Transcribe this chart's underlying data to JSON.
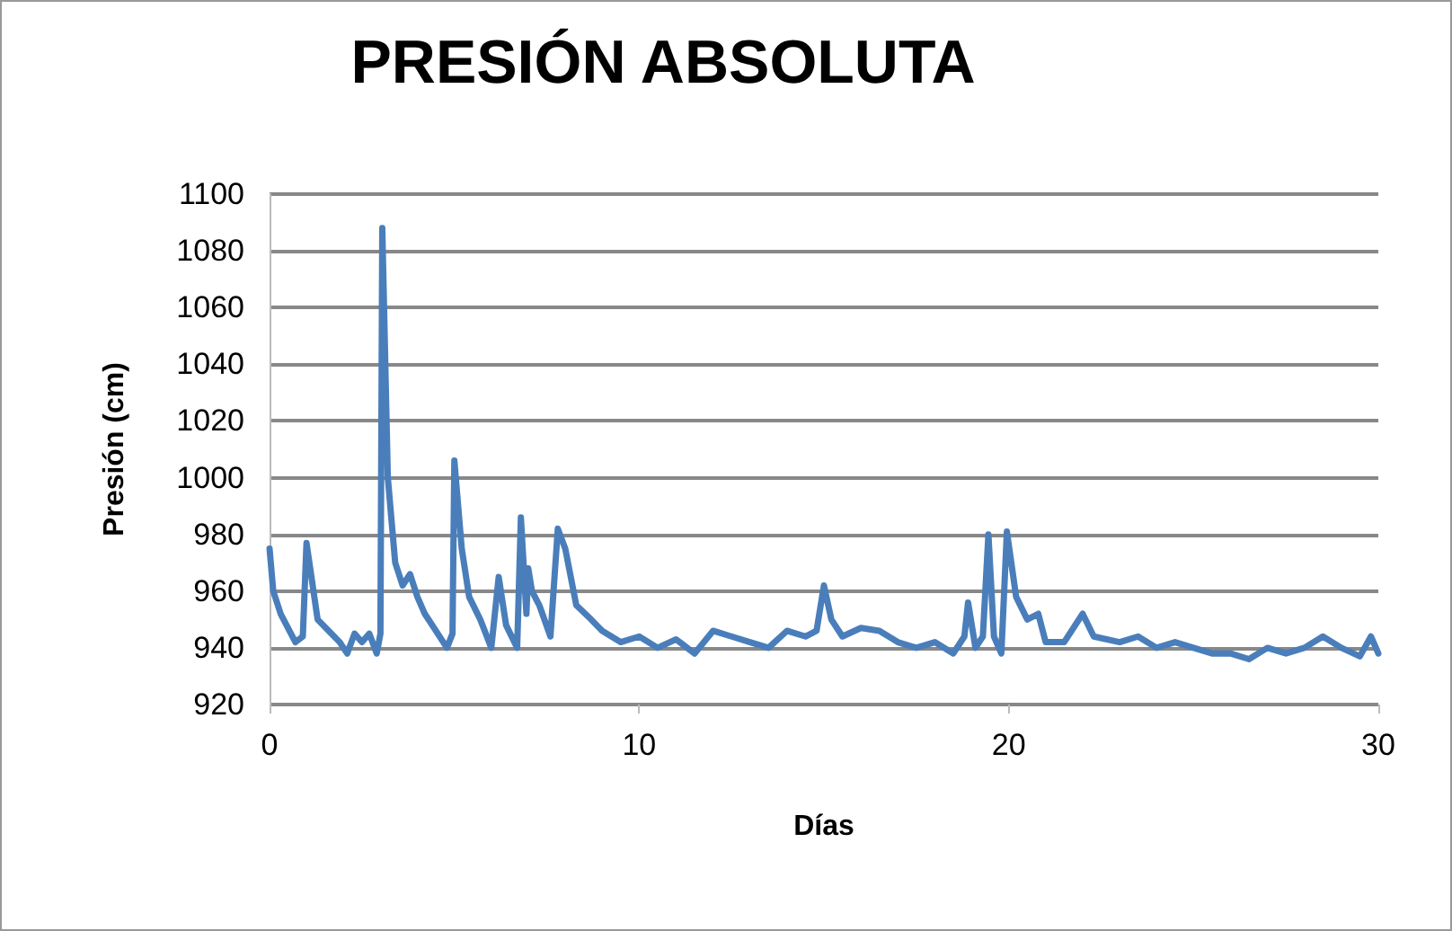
{
  "chart_data": {
    "type": "line",
    "title": "PRESIÓN ABSOLUTA",
    "xlabel": "Días",
    "ylabel": "Presión (cm)",
    "xlim": [
      0,
      30
    ],
    "xticks": [
      0,
      10,
      20,
      30
    ],
    "ylim": [
      920,
      1100
    ],
    "yticks": [
      920,
      940,
      960,
      980,
      1000,
      1020,
      1040,
      1060,
      1080,
      1100
    ],
    "grid": "y",
    "marker": "none",
    "line_style": "solid",
    "series": [
      {
        "color": "#4a7ebb",
        "x": [
          0,
          0.1,
          0.3,
          0.7,
          0.9,
          1.0,
          1.1,
          1.3,
          1.6,
          1.9,
          2.1,
          2.3,
          2.5,
          2.7,
          2.9,
          3.0,
          3.05,
          3.2,
          3.4,
          3.6,
          3.8,
          4.0,
          4.2,
          4.5,
          4.8,
          4.95,
          5.0,
          5.2,
          5.4,
          5.7,
          6.0,
          6.2,
          6.4,
          6.7,
          6.8,
          6.95,
          7.0,
          7.1,
          7.3,
          7.6,
          7.8,
          8.0,
          8.3,
          8.7,
          9.0,
          9.5,
          10,
          10.5,
          11,
          11.5,
          12,
          12.5,
          13,
          13.5,
          14,
          14.5,
          14.8,
          15,
          15.2,
          15.5,
          16,
          16.5,
          17,
          17.5,
          18,
          18.5,
          18.8,
          18.9,
          19.1,
          19.3,
          19.45,
          19.6,
          19.8,
          19.95,
          20.2,
          20.5,
          20.8,
          21,
          21.5,
          22,
          22.3,
          23,
          23.5,
          24,
          24.5,
          25,
          25.5,
          26,
          26.5,
          27,
          27.5,
          28,
          28.5,
          29,
          29.5,
          29.8,
          30
        ],
        "values": [
          975,
          960,
          952,
          942,
          944,
          977,
          968,
          950,
          946,
          942,
          938,
          945,
          942,
          945,
          938,
          945,
          1088,
          1000,
          970,
          962,
          966,
          958,
          952,
          946,
          940,
          945,
          1006,
          975,
          958,
          950,
          940,
          965,
          948,
          940,
          986,
          952,
          968,
          960,
          955,
          944,
          982,
          975,
          955,
          950,
          946,
          942,
          944,
          940,
          943,
          938,
          946,
          944,
          942,
          940,
          946,
          944,
          946,
          962,
          950,
          944,
          947,
          946,
          942,
          940,
          942,
          938,
          944,
          956,
          940,
          944,
          980,
          944,
          938,
          981,
          958,
          950,
          952,
          942,
          942,
          952,
          944,
          942,
          944,
          940,
          942,
          940,
          938,
          938,
          936,
          940,
          938,
          940,
          944,
          940,
          937,
          944,
          938
        ]
      }
    ]
  }
}
